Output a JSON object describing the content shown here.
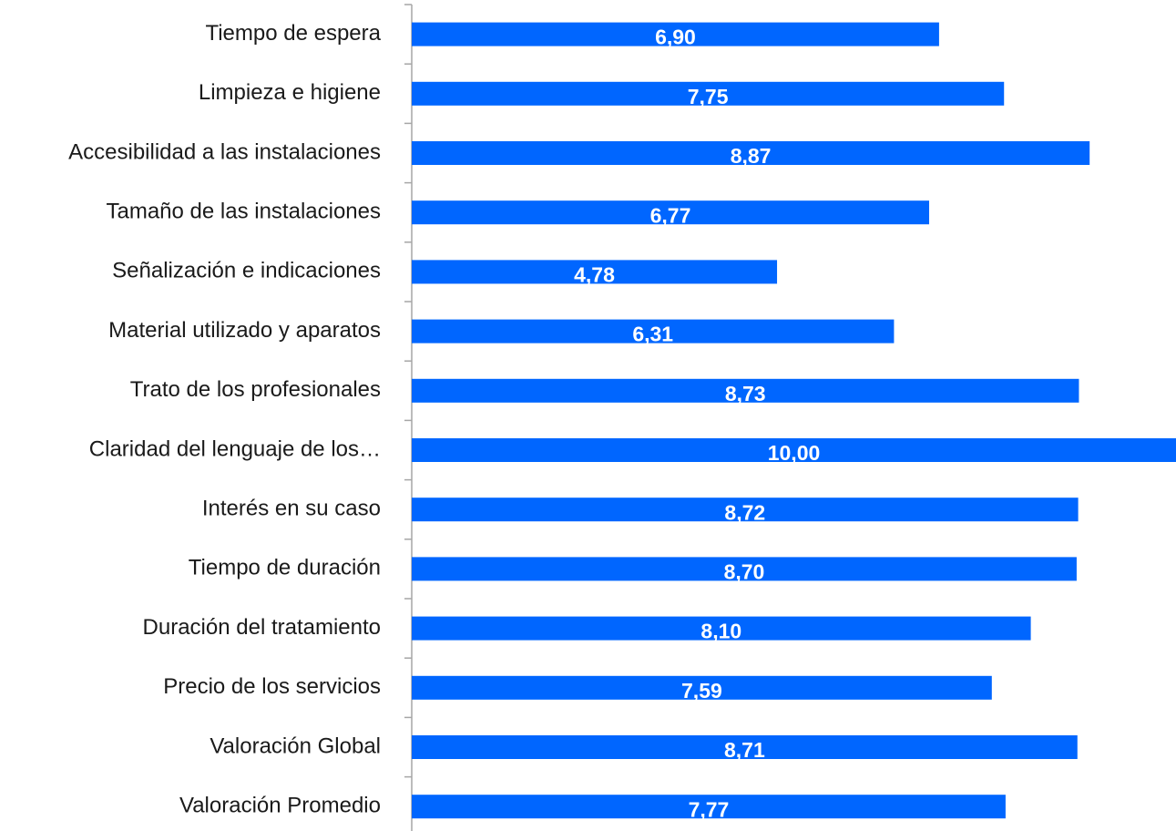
{
  "chart_data": {
    "type": "barh",
    "categories": [
      "Tiempo de espera",
      "Limpieza e higiene",
      "Accesibilidad a las instalaciones",
      "Tamaño de las instalaciones",
      "Señalización e indicaciones",
      "Material utilizado y aparatos",
      "Trato de los profesionales",
      "Claridad del lenguaje de los…",
      "Interés en su caso",
      "Tiempo de duración",
      "Duración del tratamiento",
      "Precio de los servicios",
      "Valoración Global",
      "Valoración Promedio"
    ],
    "values": [
      6.9,
      7.75,
      8.87,
      6.77,
      4.78,
      6.31,
      8.73,
      10.0,
      8.72,
      8.7,
      8.1,
      7.59,
      8.71,
      7.77
    ],
    "value_labels": [
      "6,90",
      "7,75",
      "8,87",
      "6,77",
      "4,78",
      "6,31",
      "8,73",
      "10,00",
      "8,72",
      "8,70",
      "8,10",
      "7,59",
      "8,71",
      "7,77"
    ],
    "color": "#0066ff",
    "xlim": [
      0,
      10
    ]
  }
}
